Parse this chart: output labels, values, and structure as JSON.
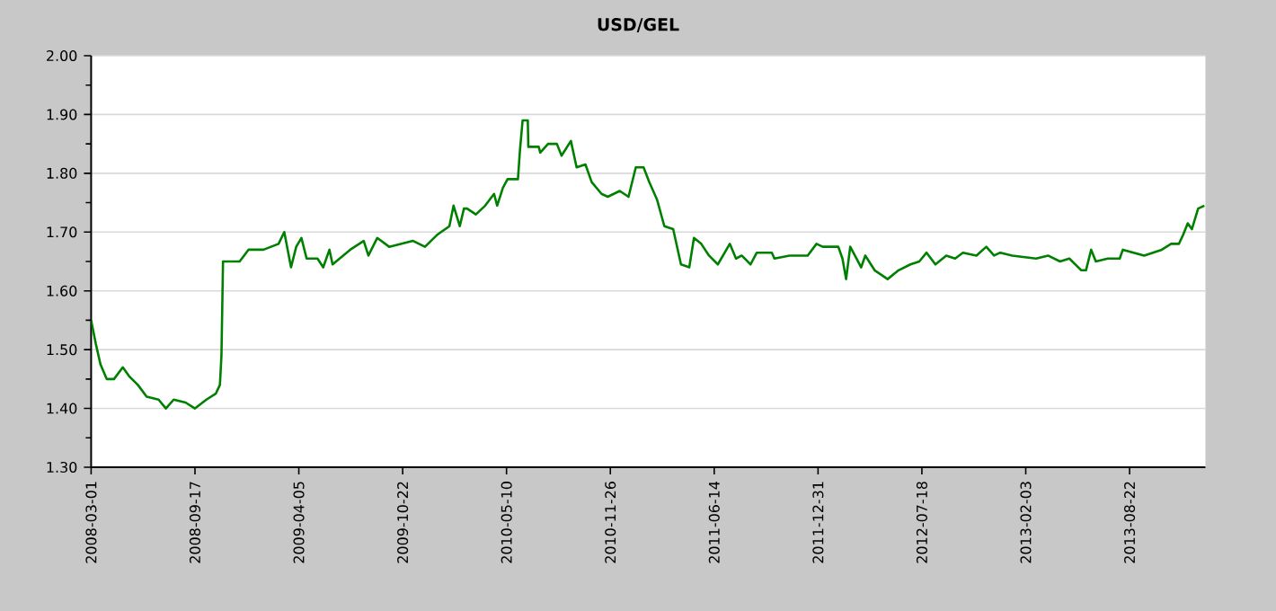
{
  "chart_data": {
    "type": "line",
    "title": "USD/GEL",
    "color": "#008000",
    "grid": "y",
    "xlim": [
      "2008-03-01",
      "2014-01-15"
    ],
    "xticks": [
      "2008-03-01",
      "2008-09-17",
      "2009-04-05",
      "2009-10-22",
      "2010-05-10",
      "2010-11-26",
      "2011-06-14",
      "2011-12-31",
      "2012-07-18",
      "2013-02-03",
      "2013-08-22"
    ],
    "ylim": [
      1.3,
      2.0
    ],
    "yticks": [
      {
        "value": 1.3,
        "label": "1.30"
      },
      {
        "value": 1.4,
        "label": "1.40"
      },
      {
        "value": 1.5,
        "label": "1.50"
      },
      {
        "value": 1.6,
        "label": "1.60"
      },
      {
        "value": 1.7,
        "label": "1.70"
      },
      {
        "value": 1.8,
        "label": "1.80"
      },
      {
        "value": 1.9,
        "label": "1.90"
      },
      {
        "value": 2.0,
        "label": "2.00"
      }
    ],
    "x": [
      "2008-03-01",
      "2008-03-10",
      "2008-03-19",
      "2008-03-31",
      "2008-04-14",
      "2008-05-01",
      "2008-05-13",
      "2008-05-30",
      "2008-06-16",
      "2008-07-09",
      "2008-07-23",
      "2008-08-07",
      "2008-08-30",
      "2008-09-17",
      "2008-10-09",
      "2008-10-27",
      "2008-11-04",
      "2008-11-07",
      "2008-11-10",
      "2008-12-12",
      "2008-12-29",
      "2009-01-27",
      "2009-02-25",
      "2009-03-08",
      "2009-03-21",
      "2009-03-31",
      "2009-04-10",
      "2009-04-20",
      "2009-05-11",
      "2009-05-22",
      "2009-06-03",
      "2009-06-09",
      "2009-07-13",
      "2009-08-08",
      "2009-08-17",
      "2009-09-03",
      "2009-09-26",
      "2009-11-11",
      "2009-12-04",
      "2009-12-27",
      "2010-01-20",
      "2010-01-28",
      "2010-02-09",
      "2010-02-17",
      "2010-02-23",
      "2010-03-12",
      "2010-03-30",
      "2010-04-16",
      "2010-04-22",
      "2010-05-03",
      "2010-05-12",
      "2010-06-01",
      "2010-06-05",
      "2010-06-10",
      "2010-06-20",
      "2010-06-21",
      "2010-07-11",
      "2010-07-14",
      "2010-07-29",
      "2010-08-15",
      "2010-08-24",
      "2010-09-11",
      "2010-09-22",
      "2010-10-09",
      "2010-10-21",
      "2010-11-09",
      "2010-11-21",
      "2010-12-14",
      "2010-12-31",
      "2011-01-14",
      "2011-01-29",
      "2011-02-09",
      "2011-02-24",
      "2011-03-10",
      "2011-03-27",
      "2011-04-11",
      "2011-04-27",
      "2011-05-06",
      "2011-05-20",
      "2011-06-04",
      "2011-06-21",
      "2011-07-14",
      "2011-07-26",
      "2011-08-06",
      "2011-08-23",
      "2011-09-04",
      "2011-10-03",
      "2011-10-08",
      "2011-11-06",
      "2011-12-11",
      "2011-12-28",
      "2012-01-09",
      "2012-02-08",
      "2012-02-16",
      "2012-02-23",
      "2012-03-02",
      "2012-03-14",
      "2012-03-23",
      "2012-03-31",
      "2012-04-18",
      "2012-05-13",
      "2012-06-03",
      "2012-06-26",
      "2012-07-13",
      "2012-07-27",
      "2012-08-13",
      "2012-09-03",
      "2012-09-20",
      "2012-10-05",
      "2012-10-31",
      "2012-11-19",
      "2012-12-04",
      "2012-12-16",
      "2013-01-08",
      "2013-02-23",
      "2013-03-18",
      "2013-04-10",
      "2013-04-28",
      "2013-05-21",
      "2013-05-30",
      "2013-06-09",
      "2013-06-18",
      "2013-07-11",
      "2013-08-03",
      "2013-08-09",
      "2013-09-19",
      "2013-10-23",
      "2013-11-10",
      "2013-11-25",
      "2013-12-03",
      "2013-12-12",
      "2013-12-20",
      "2014-01-01",
      "2014-01-13"
    ],
    "values": [
      1.55,
      1.51,
      1.475,
      1.45,
      1.45,
      1.47,
      1.455,
      1.44,
      1.42,
      1.415,
      1.4,
      1.415,
      1.41,
      1.4,
      1.415,
      1.425,
      1.44,
      1.49,
      1.65,
      1.65,
      1.67,
      1.67,
      1.68,
      1.7,
      1.64,
      1.675,
      1.69,
      1.655,
      1.655,
      1.64,
      1.67,
      1.645,
      1.67,
      1.685,
      1.66,
      1.69,
      1.675,
      1.685,
      1.675,
      1.695,
      1.71,
      1.745,
      1.71,
      1.74,
      1.74,
      1.73,
      1.745,
      1.765,
      1.745,
      1.775,
      1.79,
      1.79,
      1.84,
      1.89,
      1.89,
      1.845,
      1.845,
      1.835,
      1.85,
      1.85,
      1.83,
      1.855,
      1.81,
      1.815,
      1.785,
      1.765,
      1.76,
      1.77,
      1.76,
      1.81,
      1.81,
      1.785,
      1.755,
      1.71,
      1.705,
      1.645,
      1.64,
      1.69,
      1.68,
      1.66,
      1.645,
      1.68,
      1.655,
      1.66,
      1.645,
      1.665,
      1.665,
      1.655,
      1.66,
      1.66,
      1.68,
      1.675,
      1.675,
      1.655,
      1.62,
      1.675,
      1.655,
      1.64,
      1.66,
      1.635,
      1.62,
      1.635,
      1.645,
      1.65,
      1.665,
      1.645,
      1.66,
      1.655,
      1.665,
      1.66,
      1.675,
      1.66,
      1.665,
      1.66,
      1.655,
      1.66,
      1.65,
      1.655,
      1.635,
      1.635,
      1.67,
      1.65,
      1.655,
      1.655,
      1.67,
      1.66,
      1.67,
      1.68,
      1.68,
      1.695,
      1.715,
      1.705,
      1.74,
      1.745
    ]
  }
}
